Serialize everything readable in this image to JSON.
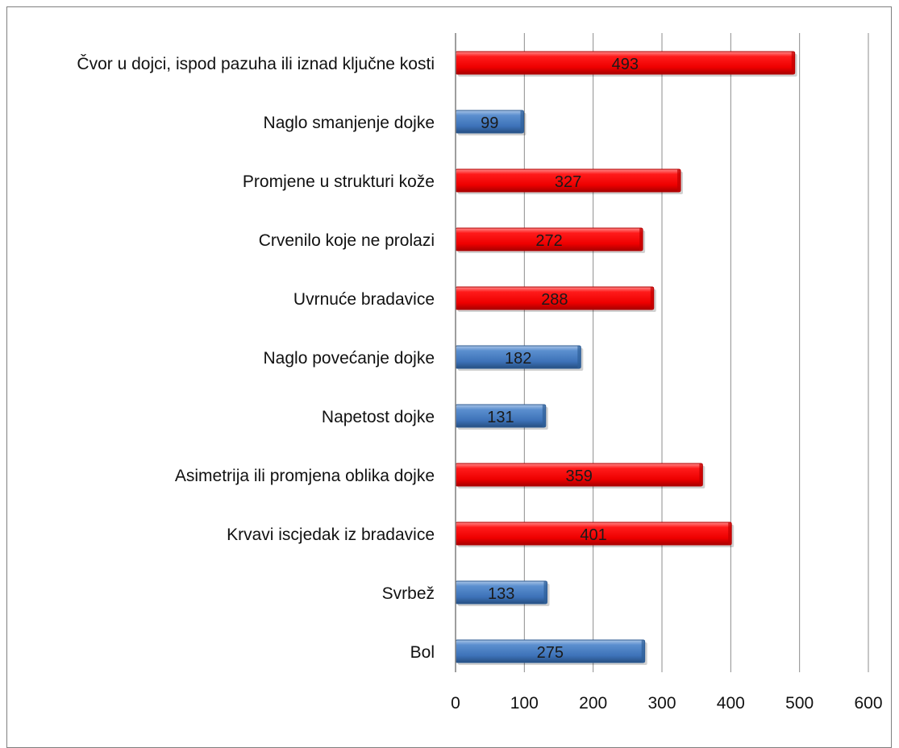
{
  "chart_data": {
    "type": "bar",
    "orientation": "horizontal",
    "categories": [
      "Čvor u dojci, ispod pazuha ili iznad ključne kosti",
      "Naglo smanjenje dojke",
      "Promjene u strukturi kože",
      "Crvenilo koje ne prolazi",
      "Uvrnuće bradavice",
      "Naglo povećanje dojke",
      "Napetost dojke",
      "Asimetrija ili promjena oblika dojke",
      "Krvavi iscjedak iz bradavice",
      "Svrbež",
      "Bol"
    ],
    "values": [
      493,
      99,
      327,
      272,
      288,
      182,
      131,
      359,
      401,
      133,
      275
    ],
    "bar_colors": [
      "#ff0000",
      "#4f81bd",
      "#ff0000",
      "#ff0000",
      "#ff0000",
      "#4f81bd",
      "#4f81bd",
      "#ff0000",
      "#ff0000",
      "#4f81bd",
      "#4f81bd"
    ],
    "data_labels": [
      "493",
      "99",
      "327",
      "272",
      "288",
      "182",
      "131",
      "359",
      "401",
      "133",
      "275"
    ],
    "xlim": [
      0,
      600
    ],
    "x_ticks": [
      "0",
      "100",
      "200",
      "300",
      "400",
      "500",
      "600"
    ],
    "title": "",
    "xlabel": "",
    "ylabel": "",
    "grid": "vertical",
    "legend": "none"
  }
}
